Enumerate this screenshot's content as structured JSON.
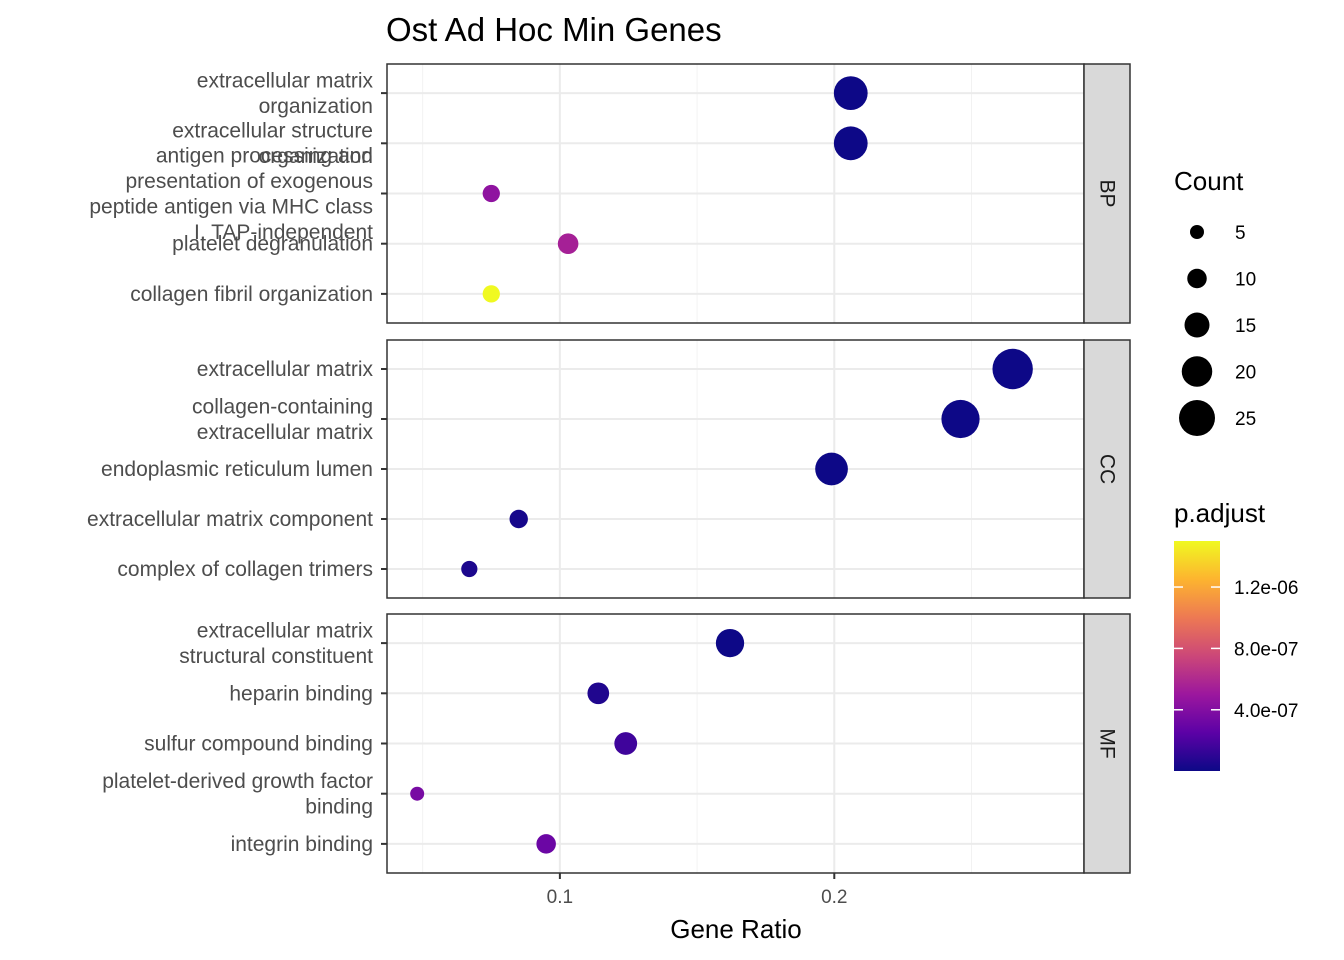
{
  "chart_data": {
    "type": "scatter",
    "title": "Ost Ad Hoc Min Genes",
    "xlabel": "Gene Ratio",
    "ylabel": "",
    "xlim": [
      0.037,
      0.291
    ],
    "xticks": [
      0.1,
      0.2
    ],
    "xtick_labels": [
      "0.1",
      "0.2"
    ],
    "grid": true,
    "legend_position": "right",
    "size_legend": {
      "title": "Count",
      "values": [
        5,
        10,
        15,
        20,
        25
      ],
      "labels": [
        "5",
        "10",
        "15",
        "20",
        "25"
      ]
    },
    "color_legend": {
      "title": "p.adjust",
      "ticks": [
        4e-07,
        8e-07,
        1.2e-06
      ],
      "labels": [
        "4.0e-07",
        "8.0e-07",
        "1.2e-06"
      ],
      "range": [
        1e-09,
        1.5e-06
      ],
      "low_color": "#0d0887",
      "high_color": "#f0f921"
    },
    "panels": [
      {
        "name": "BP",
        "terms": [
          {
            "label": "extracellular matrix\norganization",
            "gene_ratio": 0.206,
            "count": 23,
            "p_adjust": 3e-10
          },
          {
            "label": "extracellular structure\norganization",
            "gene_ratio": 0.206,
            "count": 23,
            "p_adjust": 3e-10
          },
          {
            "label": "antigen processing and\npresentation of exogenous\npeptide antigen via MHC class\nI, TAP-independent",
            "gene_ratio": 0.075,
            "count": 8,
            "p_adjust": 4.5e-07
          },
          {
            "label": "platelet degranulation",
            "gene_ratio": 0.103,
            "count": 11,
            "p_adjust": 5.5e-07
          },
          {
            "label": "collagen fibril organization",
            "gene_ratio": 0.075,
            "count": 8,
            "p_adjust": 1.52e-06
          }
        ]
      },
      {
        "name": "CC",
        "terms": [
          {
            "label": "extracellular matrix",
            "gene_ratio": 0.265,
            "count": 29,
            "p_adjust": 1e-12
          },
          {
            "label": "collagen-containing\nextracellular matrix",
            "gene_ratio": 0.246,
            "count": 27,
            "p_adjust": 5e-12
          },
          {
            "label": "endoplasmic reticulum lumen",
            "gene_ratio": 0.199,
            "count": 22,
            "p_adjust": 2e-10
          },
          {
            "label": "extracellular matrix component",
            "gene_ratio": 0.085,
            "count": 9,
            "p_adjust": 3e-08
          },
          {
            "label": "complex of collagen trimers",
            "gene_ratio": 0.067,
            "count": 7,
            "p_adjust": 5e-08
          }
        ]
      },
      {
        "name": "MF",
        "terms": [
          {
            "label": "extracellular matrix\nstructural constituent",
            "gene_ratio": 0.162,
            "count": 18,
            "p_adjust": 1e-09
          },
          {
            "label": "heparin binding",
            "gene_ratio": 0.114,
            "count": 12,
            "p_adjust": 6e-08
          },
          {
            "label": "sulfur compound binding",
            "gene_ratio": 0.124,
            "count": 13,
            "p_adjust": 1.6e-07
          },
          {
            "label": "platelet-derived growth factor\nbinding",
            "gene_ratio": 0.048,
            "count": 5,
            "p_adjust": 3.6e-07
          },
          {
            "label": "integrin binding",
            "gene_ratio": 0.095,
            "count": 10,
            "p_adjust": 3.1e-07
          }
        ]
      }
    ]
  }
}
